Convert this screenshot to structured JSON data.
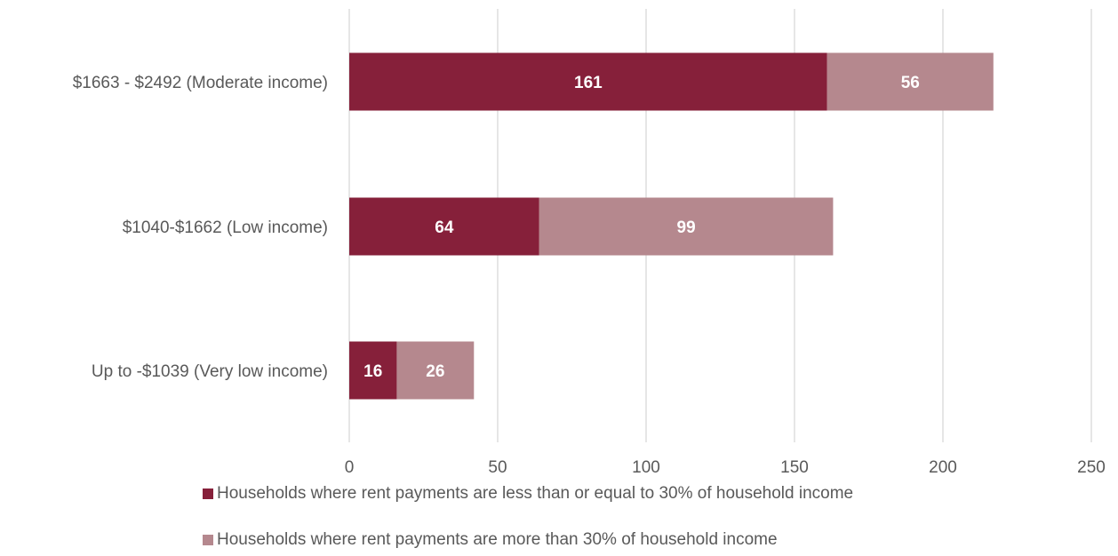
{
  "chart_data": {
    "type": "bar",
    "orientation": "horizontal",
    "stacked": true,
    "title": "",
    "xlabel": "",
    "ylabel": "",
    "categories": [
      "$1663 - $2492 (Moderate income)",
      "$1040-$1662 (Low income)",
      "Up to -$1039 (Very low income)"
    ],
    "series": [
      {
        "name": "Households where rent payments are less than or equal to 30% of household income",
        "values": [
          161,
          64,
          16
        ],
        "color": "#86203a"
      },
      {
        "name": "Households where rent payments are more than 30% of household income",
        "values": [
          56,
          99,
          26
        ],
        "color": "#b5888e"
      }
    ],
    "xlim": [
      0,
      250
    ],
    "xticks": [
      "0",
      "50",
      "100",
      "150",
      "200",
      "250"
    ],
    "grid": "vertical",
    "legend_position": "bottom",
    "data_labels": true,
    "label_color": "#ffffff",
    "axis_text_color": "#595959",
    "grid_color": "#d9d9d9"
  }
}
